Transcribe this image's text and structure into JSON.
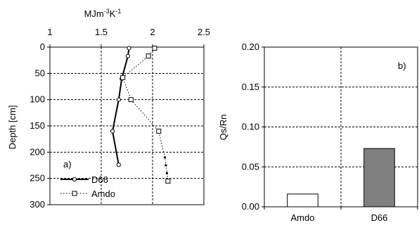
{
  "chart_data": [
    {
      "type": "line",
      "panel_label": "a)",
      "x_axis_title_base": "MJm",
      "x_axis_title_exp1": "-3",
      "x_axis_title_mid": "K",
      "x_axis_title_exp2": "-1",
      "ylabel": "Depth [cm]",
      "xlim": [
        1,
        2.5
      ],
      "ylim": [
        0,
        300
      ],
      "y_inverted": true,
      "x_ticks": [
        "1",
        "1.5",
        "2",
        "2.5"
      ],
      "y_ticks": [
        "0",
        "50",
        "100",
        "150",
        "200",
        "250",
        "300"
      ],
      "grid": "dashed",
      "legend_position": "bottom-left",
      "series": [
        {
          "name": "D66",
          "style": "solid",
          "marker": "circle",
          "color": "#000000",
          "points": [
            [
              1.77,
              2
            ],
            [
              1.76,
              17
            ],
            [
              1.7,
              60
            ],
            [
              1.67,
              100
            ],
            [
              1.61,
              160
            ],
            [
              1.67,
              224
            ]
          ]
        },
        {
          "name": "Amdo",
          "style": "dotted",
          "marker": "square",
          "color": "#000000",
          "points": [
            [
              2.02,
              2
            ],
            [
              1.96,
              17
            ],
            [
              1.71,
              58
            ],
            [
              1.79,
              100
            ],
            [
              2.06,
              160
            ],
            [
              2.12,
              210
            ],
            [
              2.13,
              225
            ],
            [
              2.14,
              240
            ],
            [
              2.15,
              255
            ]
          ],
          "hollow_markers": [
            0,
            1,
            2,
            3,
            4,
            8
          ]
        }
      ]
    },
    {
      "type": "bar",
      "panel_label": "b)",
      "ylabel": "Qs/Rn",
      "categories": [
        "Amdo",
        "D66"
      ],
      "values": [
        0.016,
        0.073
      ],
      "bar_colors": [
        "#ffffff",
        "#808080"
      ],
      "ylim": [
        0,
        0.2
      ],
      "y_ticks": [
        "0.00",
        "0.05",
        "0.10",
        "0.15",
        "0.20"
      ],
      "grid": "dashed"
    }
  ]
}
